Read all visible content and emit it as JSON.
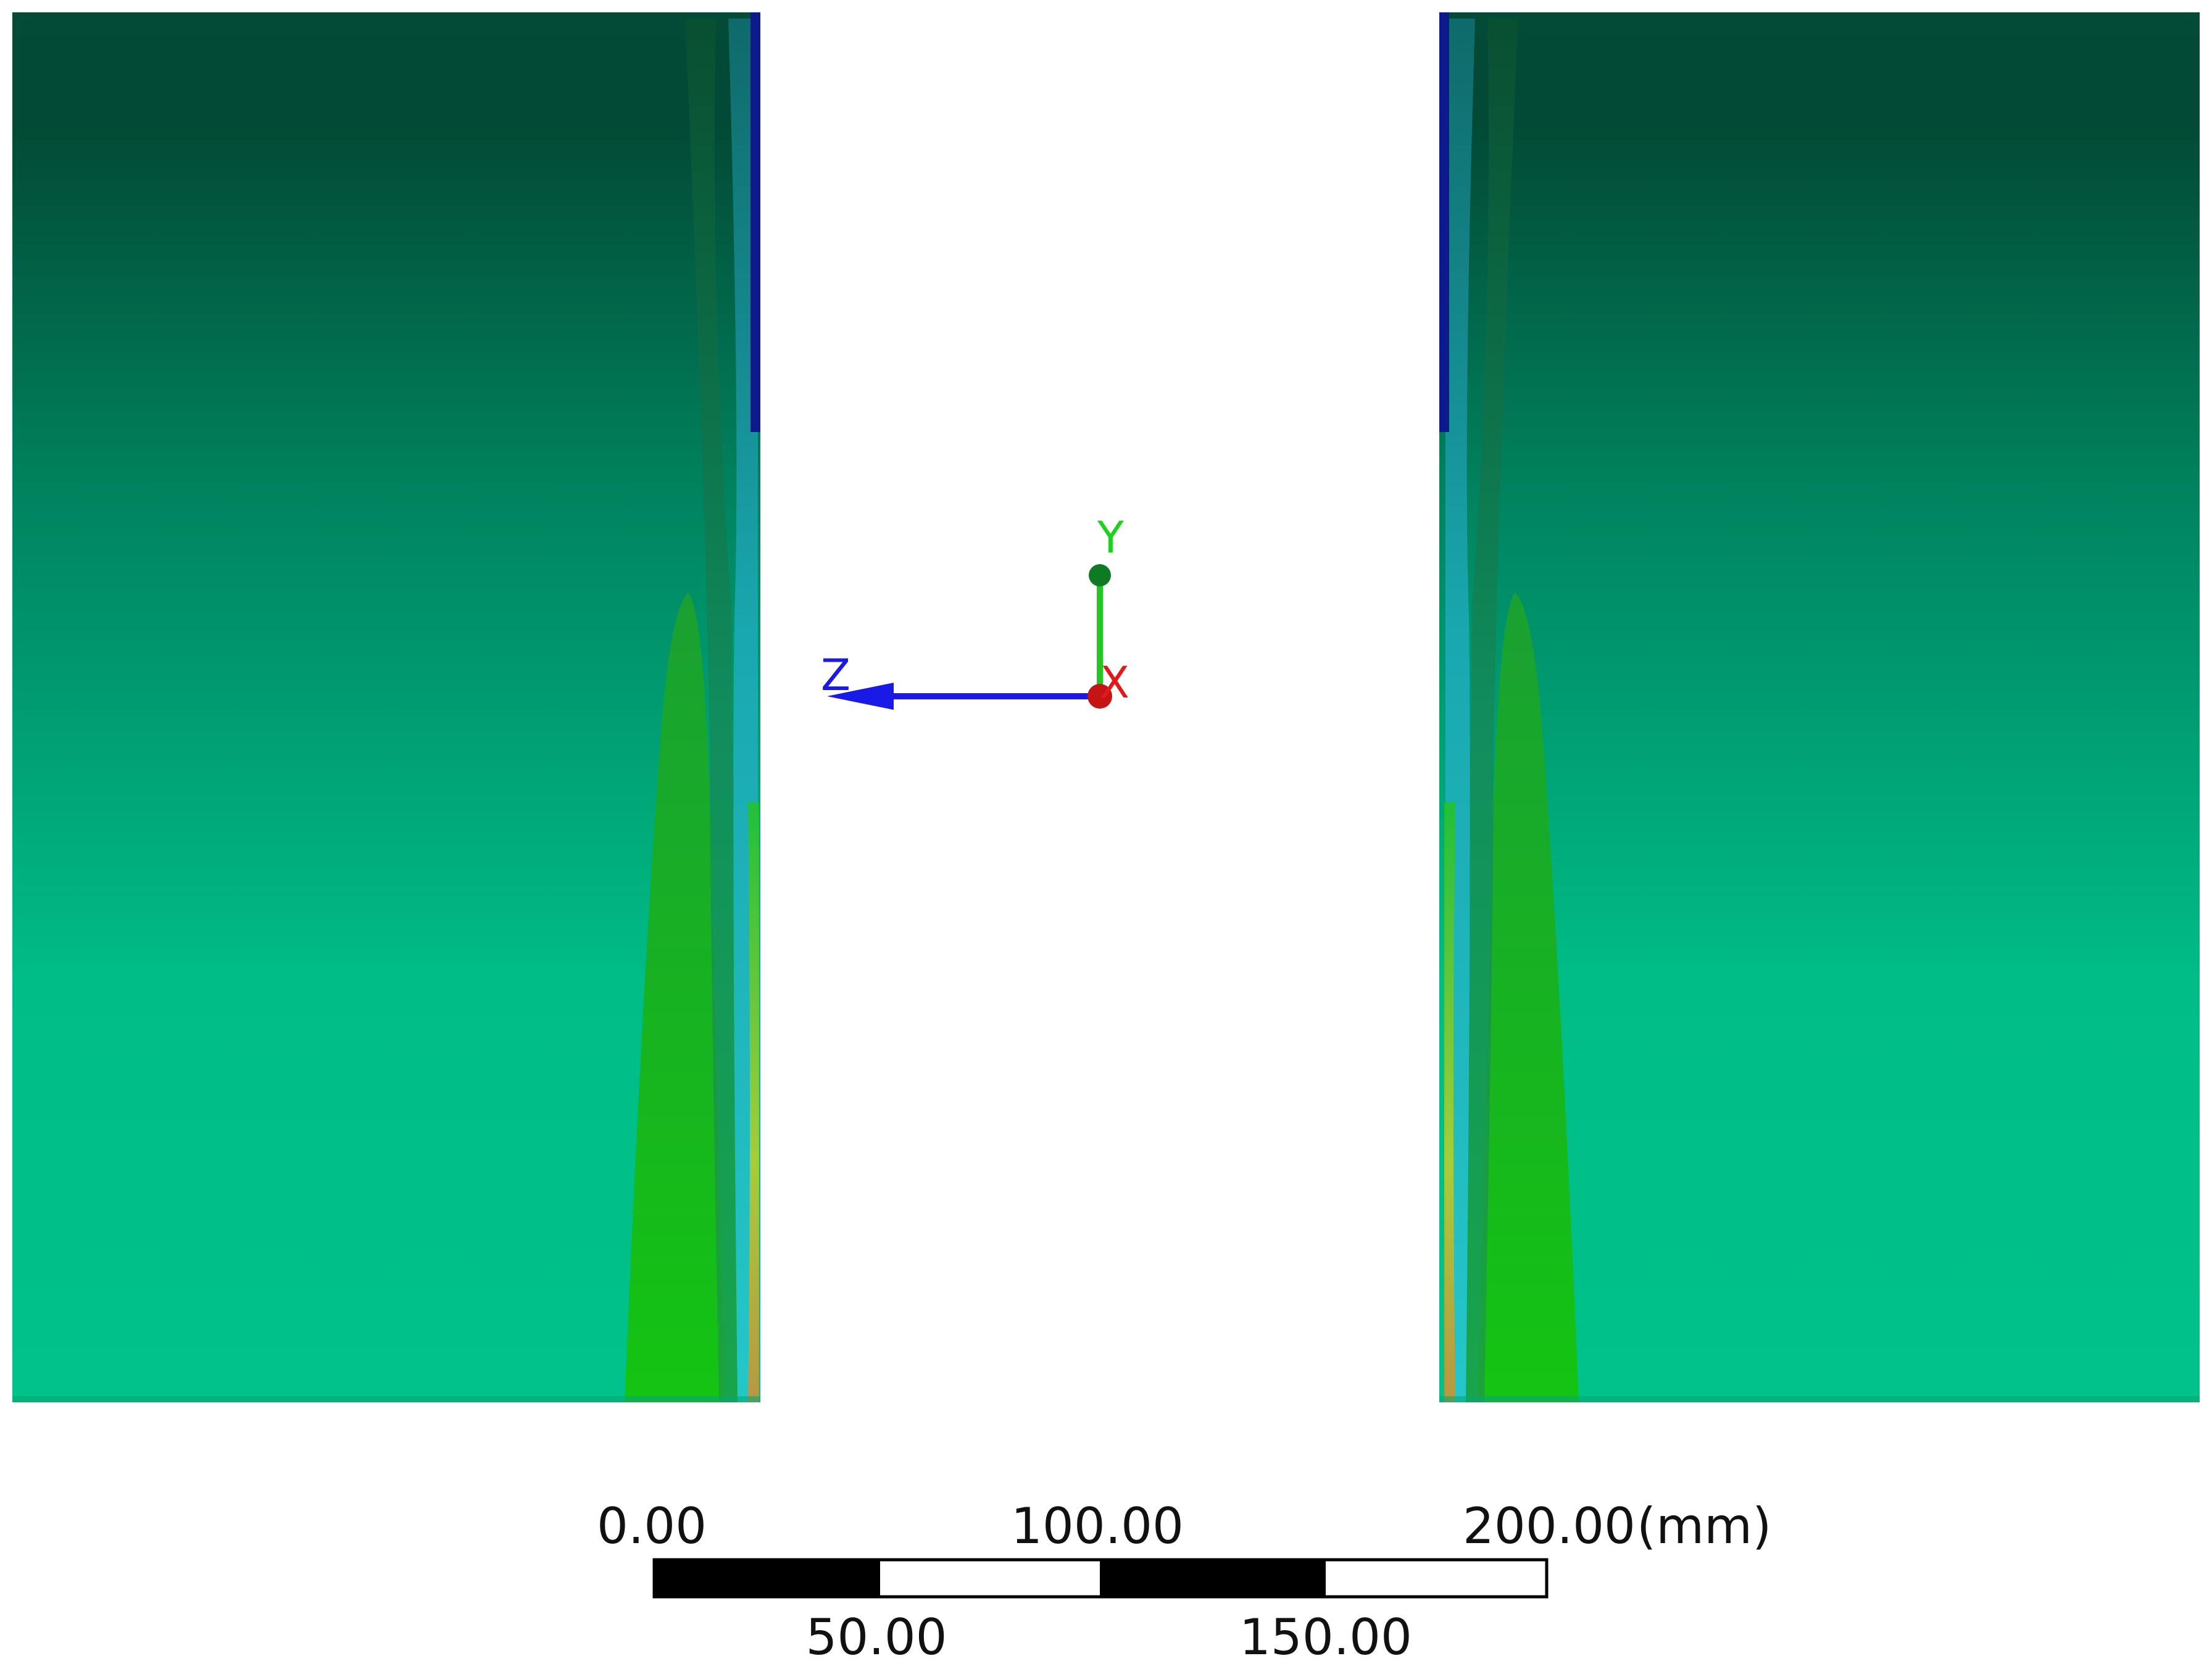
{
  "coordinate_triad": {
    "axes": [
      {
        "label": "Y",
        "color": "#1fd11f"
      },
      {
        "label": "Z",
        "color": "#1a1ae6"
      },
      {
        "label": "X",
        "color": "#e01a1a"
      }
    ]
  },
  "scale_bar": {
    "unit": "(mm)",
    "range_mm": [
      0,
      200
    ],
    "top_ticks": [
      "0.00",
      "100.00",
      "200.00"
    ],
    "bottom_ticks": [
      "50.00",
      "150.00"
    ],
    "segments": [
      {
        "from": 0,
        "to": 50,
        "fill": "black"
      },
      {
        "from": 50,
        "to": 100,
        "fill": "white"
      },
      {
        "from": 100,
        "to": 150,
        "fill": "black"
      },
      {
        "from": 150,
        "to": 200,
        "fill": "white"
      }
    ]
  },
  "colors": {
    "model_top": "#034a37",
    "model_bottom": "#00c28a",
    "band_green": "#18c21a",
    "band_cyan": "#1fc8c8",
    "edge_blue": "#0c1a8c",
    "edge_warm": "#e3b020"
  }
}
